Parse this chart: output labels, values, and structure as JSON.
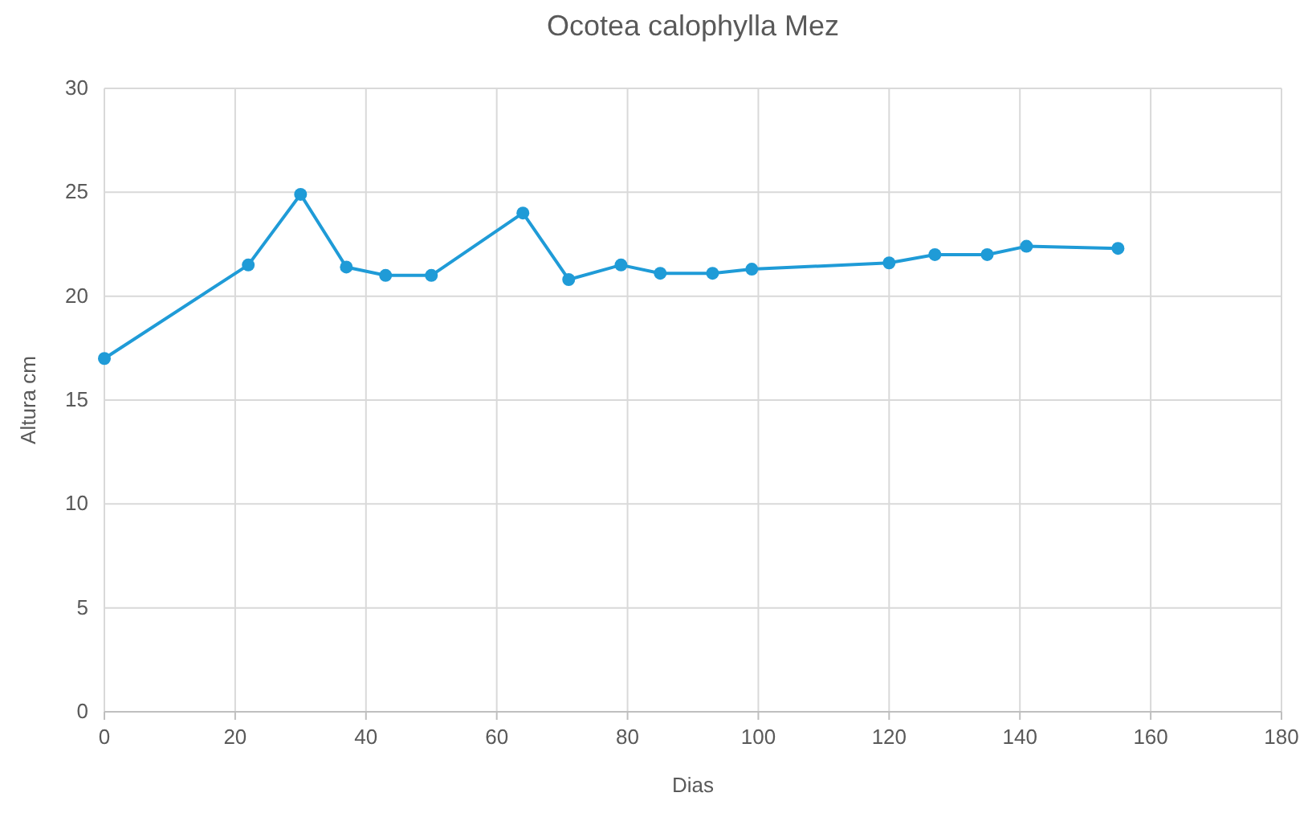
{
  "chart_data": {
    "type": "line",
    "title": "Ocotea calophylla Mez",
    "xlabel": "Dias",
    "ylabel": "Altura cm",
    "x": [
      0,
      22,
      30,
      37,
      43,
      50,
      64,
      71,
      79,
      85,
      93,
      99,
      120,
      127,
      135,
      141,
      155
    ],
    "series": [
      {
        "color": "#1f9bd7",
        "values": [
          17.0,
          21.5,
          24.9,
          21.4,
          21.0,
          21.0,
          24.0,
          20.8,
          21.5,
          21.1,
          21.1,
          21.3,
          21.6,
          22.0,
          22.0,
          22.4,
          22.3
        ]
      }
    ],
    "xlim": [
      0,
      180
    ],
    "xticks": [
      0,
      20,
      40,
      60,
      80,
      100,
      120,
      140,
      160,
      180
    ],
    "ylim": [
      0,
      30
    ],
    "yticks": [
      0,
      5,
      10,
      15,
      20,
      25,
      30
    ],
    "grid": true,
    "marker": "circle",
    "line_style": "solid"
  }
}
